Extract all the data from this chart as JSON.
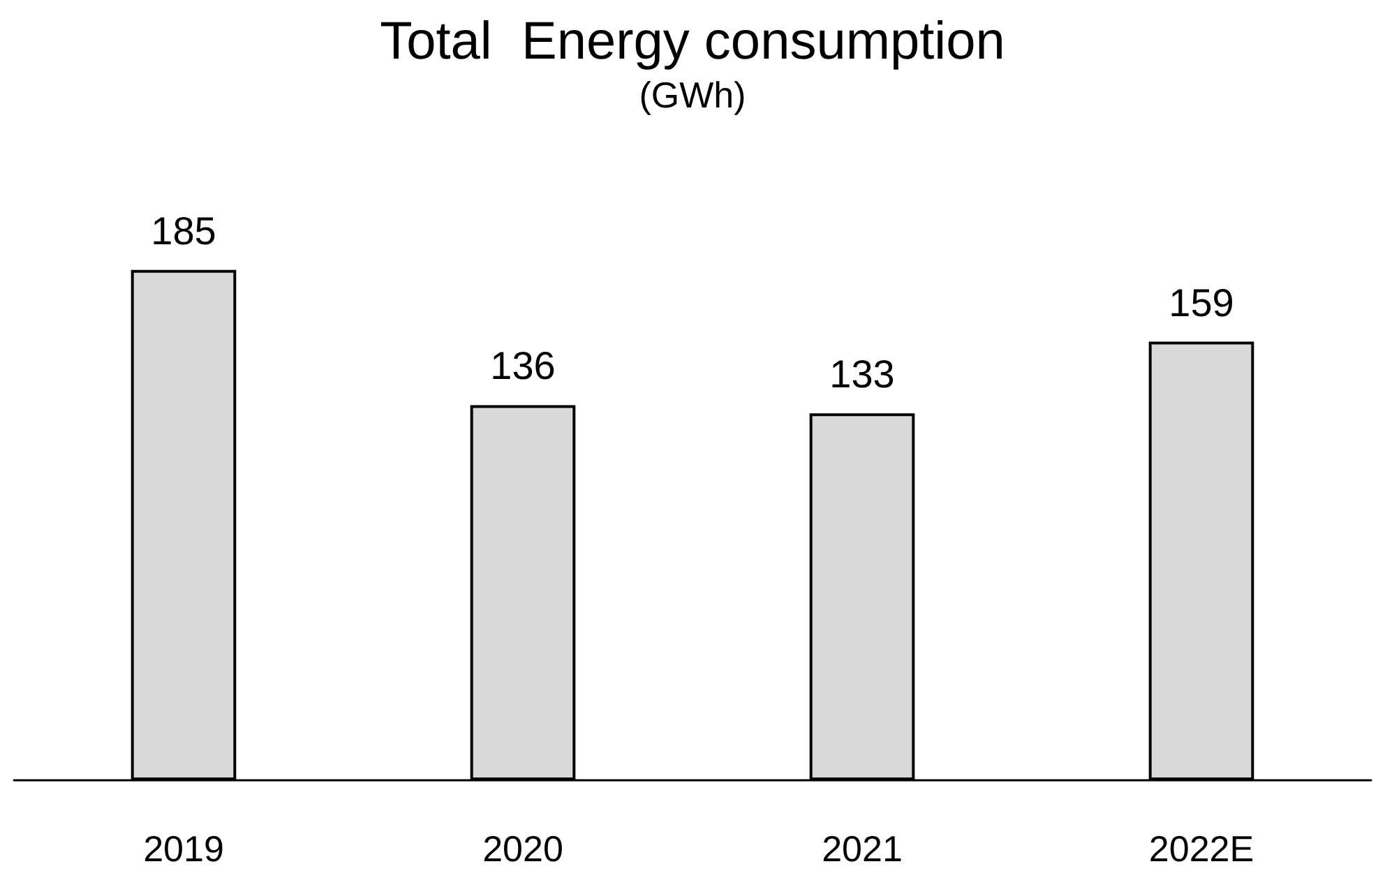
{
  "chart_data": {
    "type": "bar",
    "title": "Total  Energy consumption",
    "subtitle": "(GWh)",
    "categories": [
      "2019",
      "2020",
      "2021",
      "2022E"
    ],
    "values": [
      185,
      136,
      133,
      159
    ],
    "color": "#d9d9d9",
    "data_labels": true
  }
}
